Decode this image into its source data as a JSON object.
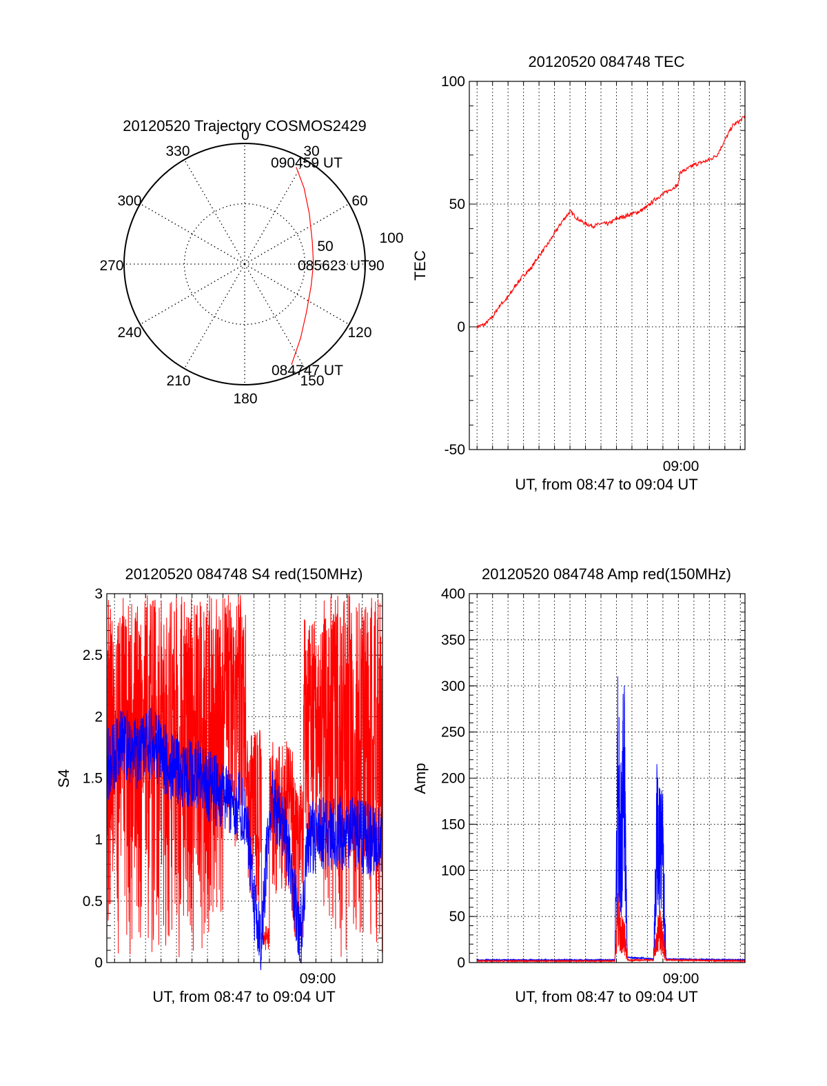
{
  "colors": {
    "red": "#ff0000",
    "blue": "#0000ff",
    "grid": "#000000",
    "axes": "#000000",
    "background": "#ffffff"
  },
  "chart_data": [
    {
      "id": "trajectory",
      "type": "polar",
      "title": "20120520 Trajectory COSMOS2429",
      "angle_labels": [
        "0",
        "30",
        "60",
        "90",
        "120",
        "150",
        "180",
        "210",
        "240",
        "270",
        "300",
        "330"
      ],
      "radial_labels": [
        "50",
        "100"
      ],
      "rlim": [
        0,
        100
      ],
      "annotations": [
        "090459 UT",
        "085623 UT",
        "084747 UT"
      ],
      "series": [
        {
          "color": "#ff0000",
          "points": [
            {
              "az": 155,
              "zen": 92
            },
            {
              "az": 143,
              "zen": 77
            },
            {
              "az": 128,
              "zen": 65
            },
            {
              "az": 108,
              "zen": 58
            },
            {
              "az": 90,
              "zen": 57
            },
            {
              "az": 72,
              "zen": 59
            },
            {
              "az": 52,
              "zen": 68
            },
            {
              "az": 38,
              "zen": 80
            },
            {
              "az": 28,
              "zen": 91
            }
          ]
        }
      ]
    },
    {
      "id": "tec",
      "type": "line",
      "title": "20120520 084748 TEC",
      "xlabel": "UT, from 08:47 to 09:04 UT",
      "ylabel": "TEC",
      "xlim": [
        "08:46.5",
        "09:04.3"
      ],
      "ylim": [
        -50,
        100
      ],
      "yticks": [
        "-50",
        "0",
        "50",
        "100"
      ],
      "xtick_labels": [
        {
          "x": "09:00",
          "label": "09:00"
        }
      ],
      "grid": true,
      "series": [
        {
          "color": "#ff0000",
          "points": [
            [
              "08:47.0",
              0
            ],
            [
              "08:47.5",
              1
            ],
            [
              "08:48.0",
              4
            ],
            [
              "08:48.5",
              9
            ],
            [
              "08:49.0",
              12
            ],
            [
              "08:49.5",
              17
            ],
            [
              "08:50.0",
              21
            ],
            [
              "08:50.5",
              24
            ],
            [
              "08:51.0",
              29
            ],
            [
              "08:51.5",
              33
            ],
            [
              "08:52.0",
              38
            ],
            [
              "08:52.5",
              43
            ],
            [
              "08:53.0",
              47
            ],
            [
              "08:53.5",
              44
            ],
            [
              "08:54.0",
              42
            ],
            [
              "08:54.5",
              41
            ],
            [
              "08:55.0",
              42
            ],
            [
              "08:55.5",
              42
            ],
            [
              "08:56.0",
              44
            ],
            [
              "08:56.5",
              45
            ],
            [
              "08:57.0",
              46
            ],
            [
              "08:57.5",
              47
            ],
            [
              "08:58.0",
              49
            ],
            [
              "08:58.5",
              52
            ],
            [
              "08:59.0",
              54
            ],
            [
              "08:59.5",
              56
            ],
            [
              "09:00.0",
              58
            ],
            [
              "09:00.1",
              63
            ],
            [
              "09:00.5",
              64
            ],
            [
              "09:01.0",
              66
            ],
            [
              "09:01.5",
              67
            ],
            [
              "09:02.0",
              68
            ],
            [
              "09:02.5",
              70
            ],
            [
              "09:03.0",
              76
            ],
            [
              "09:03.5",
              82
            ],
            [
              "09:04.0",
              84
            ],
            [
              "09:04.3",
              86
            ]
          ]
        }
      ]
    },
    {
      "id": "s4",
      "type": "line",
      "title": "20120520 084748 S4 red(150MHz)",
      "xlabel": "UT, from 08:47 to 09:04 UT",
      "ylabel": "S4",
      "xlim": [
        "08:46.5",
        "09:04.3"
      ],
      "ylim": [
        0,
        3
      ],
      "yticks": [
        "0",
        "0.5",
        "1",
        "1.5",
        "2",
        "2.5",
        "3"
      ],
      "xtick_labels": [
        {
          "x": "09:00",
          "label": "09:00"
        }
      ],
      "grid": true,
      "series": [
        {
          "color": "#ff0000",
          "note": "saturated noisy trace",
          "envelope": [
            {
              "x": [
                "08:46.5",
                "08:54.0"
              ],
              "range": [
                0,
                3
              ]
            },
            {
              "x": [
                "08:54.0",
                "08:55.5"
              ],
              "range": [
                0.9,
                3
              ]
            },
            {
              "x": [
                "08:55.5",
                "08:56.5"
              ],
              "range": [
                0.4,
                1.9
              ]
            },
            {
              "x": [
                "08:56.5",
                "08:57.0"
              ],
              "range": [
                0.1,
                0.3
              ]
            },
            {
              "x": [
                "08:57.0",
                "08:58.5"
              ],
              "range": [
                0.5,
                1.8
              ]
            },
            {
              "x": [
                "08:58.5",
                "08:59.2"
              ],
              "range": [
                0.2,
                1.5
              ]
            },
            {
              "x": [
                "08:59.2",
                "09:00.5"
              ],
              "range": [
                0.7,
                2.8
              ]
            },
            {
              "x": [
                "09:00.5",
                "09:04.3"
              ],
              "range": [
                0,
                3
              ]
            }
          ]
        },
        {
          "color": "#0000ff",
          "points": [
            [
              "08:46.5",
              1.6
            ],
            [
              "08:47.5",
              1.8
            ],
            [
              "08:48.5",
              1.7
            ],
            [
              "08:49.5",
              1.8
            ],
            [
              "08:50.5",
              1.6
            ],
            [
              "08:51.5",
              1.55
            ],
            [
              "08:52.5",
              1.5
            ],
            [
              "08:53.5",
              1.4
            ],
            [
              "08:54.5",
              1.3
            ],
            [
              "08:55.5",
              1.25
            ],
            [
              "08:56.0",
              0.45
            ],
            [
              "08:56.5",
              0.2
            ],
            [
              "08:57.0",
              1.3
            ],
            [
              "08:58.0",
              1.1
            ],
            [
              "08:59.0",
              0.2
            ],
            [
              "08:59.5",
              1.0
            ],
            [
              "09:00.5",
              1.05
            ],
            [
              "09:01.5",
              1.05
            ],
            [
              "09:02.5",
              1.05
            ],
            [
              "09:03.5",
              1.0
            ],
            [
              "09:04.3",
              1.0
            ]
          ]
        }
      ]
    },
    {
      "id": "amp",
      "type": "line",
      "title": "20120520 084748 Amp red(150MHz)",
      "xlabel": "UT, from 08:47 to 09:04 UT",
      "ylabel": "Amp",
      "xlim": [
        "08:46.5",
        "09:04.3"
      ],
      "ylim": [
        0,
        400
      ],
      "yticks": [
        "0",
        "50",
        "100",
        "150",
        "200",
        "250",
        "300",
        "350",
        "400"
      ],
      "xtick_labels": [
        {
          "x": "09:00",
          "label": "09:00"
        }
      ],
      "grid": true,
      "series": [
        {
          "color": "#0000ff",
          "points": [
            [
              "08:47.0",
              2
            ],
            [
              "08:55.9",
              2
            ],
            [
              "08:56.1",
              350
            ],
            [
              "08:56.3",
              210
            ],
            [
              "08:56.5",
              340
            ],
            [
              "08:56.7",
              5
            ],
            [
              "08:58.4",
              3
            ],
            [
              "08:58.6",
              240
            ],
            [
              "08:58.8",
              200
            ],
            [
              "08:59.0",
              210
            ],
            [
              "08:59.2",
              3
            ],
            [
              "09:04.3",
              2
            ]
          ]
        },
        {
          "color": "#ff0000",
          "points": [
            [
              "08:47.0",
              1
            ],
            [
              "08:55.9",
              1
            ],
            [
              "08:56.1",
              90
            ],
            [
              "08:56.3",
              50
            ],
            [
              "08:56.5",
              60
            ],
            [
              "08:56.7",
              2
            ],
            [
              "08:58.4",
              2
            ],
            [
              "08:58.6",
              50
            ],
            [
              "08:58.8",
              60
            ],
            [
              "08:59.0",
              40
            ],
            [
              "08:59.2",
              2
            ],
            [
              "09:04.3",
              1
            ]
          ]
        }
      ]
    }
  ]
}
